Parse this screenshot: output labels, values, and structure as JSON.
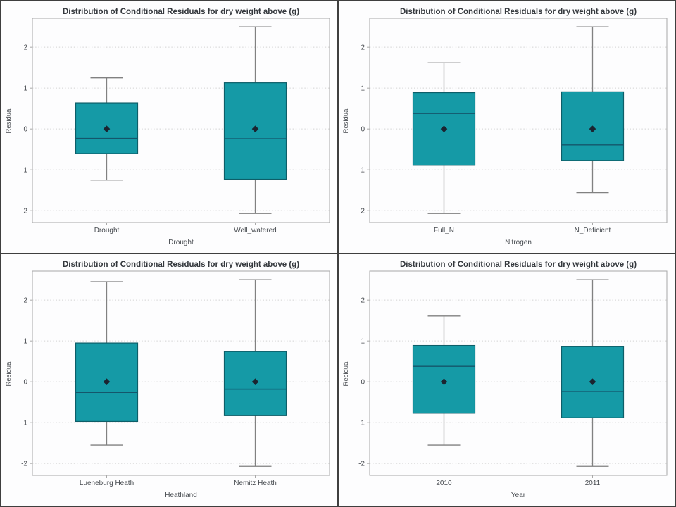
{
  "figure": {
    "title": "Distribution of Conditional Residuals for dry weight above (g)",
    "layout": "2x2-panel-grid"
  },
  "colors": {
    "box_fill": "#159AA6",
    "box_border": "#0D5E68",
    "median": "#14566B",
    "whisker": "#818181",
    "mean_marker": "#1B2430",
    "frame": "#A8A8A8",
    "gridline": "#D2D2D2",
    "title_text": "#34383D",
    "axis_text": "#45494E",
    "panel_border": "#3F3F3F",
    "panel_background": "#FDFDFE"
  },
  "chart_data": [
    {
      "type": "boxplot",
      "panel": "top-left",
      "title": "Distribution of Conditional Residuals for dry weight above (g)",
      "xlabel": "Drought",
      "ylabel": "Residual",
      "ylim": [
        -2.29,
        2.71
      ],
      "yticks": [
        -2,
        -1,
        0,
        1,
        2
      ],
      "grid": "horizontal-dotted",
      "legend": "none",
      "categories": [
        "Drought",
        "Well_watered"
      ],
      "boxes": [
        {
          "category": "Drought",
          "whisker_low": -1.25,
          "q1": -0.6,
          "median": -0.23,
          "q3": 0.64,
          "whisker_high": 1.25,
          "mean": 0
        },
        {
          "category": "Well_watered",
          "whisker_low": -2.07,
          "q1": -1.23,
          "median": -0.24,
          "q3": 1.13,
          "whisker_high": 2.5,
          "mean": 0
        }
      ]
    },
    {
      "type": "boxplot",
      "panel": "top-right",
      "title": "Distribution of Conditional Residuals for dry weight above (g)",
      "xlabel": "Nitrogen",
      "ylabel": "Residual",
      "ylim": [
        -2.29,
        2.71
      ],
      "yticks": [
        -2,
        -1,
        0,
        1,
        2
      ],
      "grid": "horizontal-dotted",
      "legend": "none",
      "categories": [
        "Full_N",
        "N_Deficient"
      ],
      "boxes": [
        {
          "category": "Full_N",
          "whisker_low": -2.07,
          "q1": -0.89,
          "median": 0.38,
          "q3": 0.89,
          "whisker_high": 1.62,
          "mean": 0
        },
        {
          "category": "N_Deficient",
          "whisker_low": -1.56,
          "q1": -0.77,
          "median": -0.39,
          "q3": 0.91,
          "whisker_high": 2.5,
          "mean": 0
        }
      ]
    },
    {
      "type": "boxplot",
      "panel": "bottom-left",
      "title": "Distribution of Conditional Residuals for dry weight above (g)",
      "xlabel": "Heathland",
      "ylabel": "Residual",
      "ylim": [
        -2.29,
        2.71
      ],
      "yticks": [
        -2,
        -1,
        0,
        1,
        2
      ],
      "grid": "horizontal-dotted",
      "legend": "none",
      "categories": [
        "Lueneburg Heath",
        "Nemitz Heath"
      ],
      "boxes": [
        {
          "category": "Lueneburg Heath",
          "whisker_low": -1.55,
          "q1": -0.97,
          "median": -0.26,
          "q3": 0.95,
          "whisker_high": 2.45,
          "mean": 0
        },
        {
          "category": "Nemitz Heath",
          "whisker_low": -2.07,
          "q1": -0.83,
          "median": -0.18,
          "q3": 0.74,
          "whisker_high": 2.5,
          "mean": 0
        }
      ]
    },
    {
      "type": "boxplot",
      "panel": "bottom-right",
      "title": "Distribution of Conditional Residuals for dry weight above (g)",
      "xlabel": "Year",
      "ylabel": "Residual",
      "ylim": [
        -2.29,
        2.71
      ],
      "yticks": [
        -2,
        -1,
        0,
        1,
        2
      ],
      "grid": "horizontal-dotted",
      "legend": "none",
      "categories": [
        "2010",
        "2011"
      ],
      "boxes": [
        {
          "category": "2010",
          "whisker_low": -1.55,
          "q1": -0.77,
          "median": 0.38,
          "q3": 0.89,
          "whisker_high": 1.61,
          "mean": 0
        },
        {
          "category": "2011",
          "whisker_low": -2.07,
          "q1": -0.88,
          "median": -0.24,
          "q3": 0.86,
          "whisker_high": 2.5,
          "mean": 0
        }
      ]
    }
  ]
}
